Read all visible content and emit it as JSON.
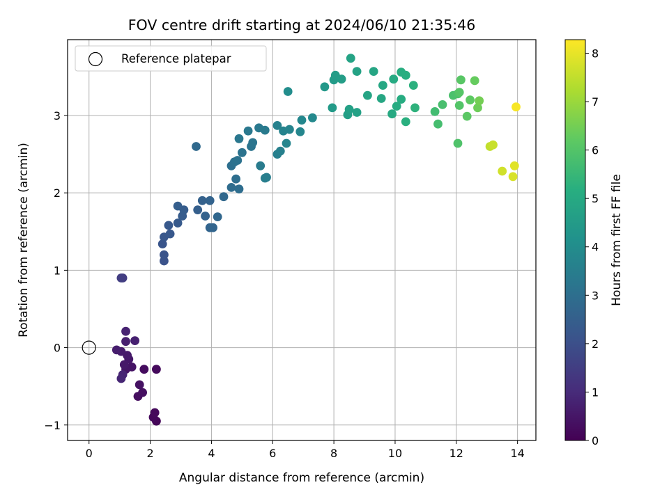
{
  "chart_data": {
    "type": "scatter",
    "title": "FOV centre drift starting at 2024/06/10 21:35:46",
    "xlabel": "Angular distance from reference (arcmin)",
    "ylabel": "Rotation from reference (arcmin)",
    "xlim": [
      -0.7,
      14.6
    ],
    "ylim": [
      -1.2,
      3.98
    ],
    "xticks": [
      0,
      2,
      4,
      6,
      8,
      10,
      12,
      14
    ],
    "yticks": [
      -1,
      0,
      1,
      2,
      3
    ],
    "grid": true,
    "legend": {
      "placement": "top-left",
      "entries": [
        "Reference platepar"
      ]
    },
    "reference_point": {
      "x": 0,
      "y": 0
    },
    "colorbar": {
      "label": "Hours from first FF file",
      "range": [
        0,
        8.28
      ],
      "ticks": [
        0,
        1,
        2,
        3,
        4,
        5,
        6,
        7,
        8
      ],
      "colormap": "viridis"
    },
    "points": [
      [
        2.2,
        -0.95,
        0.1
      ],
      [
        2.1,
        -0.9,
        0.15
      ],
      [
        2.15,
        -0.84,
        0.18
      ],
      [
        2.2,
        -0.28,
        0.22
      ],
      [
        1.8,
        -0.28,
        0.26
      ],
      [
        1.6,
        -0.63,
        0.3
      ],
      [
        1.75,
        -0.58,
        0.34
      ],
      [
        1.65,
        -0.48,
        0.38
      ],
      [
        1.4,
        -0.25,
        0.42
      ],
      [
        1.2,
        -0.28,
        0.46
      ],
      [
        1.3,
        -0.15,
        0.5
      ],
      [
        1.15,
        -0.22,
        0.54
      ],
      [
        1.25,
        -0.1,
        0.58
      ],
      [
        1.05,
        -0.05,
        0.62
      ],
      [
        0.9,
        -0.03,
        0.66
      ],
      [
        1.2,
        0.08,
        0.7
      ],
      [
        1.5,
        0.09,
        0.74
      ],
      [
        1.2,
        0.21,
        0.78
      ],
      [
        1.1,
        -0.35,
        0.82
      ],
      [
        1.05,
        -0.4,
        0.86
      ],
      [
        1.1,
        0.9,
        1.45
      ],
      [
        1.05,
        0.9,
        1.5
      ],
      [
        2.45,
        1.12,
        2.1
      ],
      [
        2.45,
        1.2,
        2.14
      ],
      [
        2.4,
        1.34,
        2.18
      ],
      [
        2.45,
        1.43,
        2.22
      ],
      [
        2.65,
        1.47,
        2.26
      ],
      [
        2.6,
        1.58,
        2.3
      ],
      [
        2.9,
        1.61,
        2.34
      ],
      [
        3.05,
        1.7,
        2.38
      ],
      [
        3.1,
        1.78,
        2.42
      ],
      [
        2.9,
        1.83,
        2.46
      ],
      [
        3.55,
        1.78,
        2.5
      ],
      [
        3.7,
        1.9,
        2.54
      ],
      [
        3.8,
        1.7,
        2.58
      ],
      [
        3.95,
        1.9,
        2.62
      ],
      [
        3.95,
        1.55,
        2.66
      ],
      [
        4.05,
        1.55,
        2.7
      ],
      [
        4.2,
        1.69,
        2.74
      ],
      [
        4.4,
        1.95,
        2.78
      ],
      [
        3.5,
        2.6,
        2.82
      ],
      [
        4.65,
        2.07,
        2.9
      ],
      [
        4.9,
        2.05,
        2.94
      ],
      [
        4.8,
        2.18,
        2.98
      ],
      [
        4.65,
        2.35,
        3.02
      ],
      [
        4.75,
        2.4,
        3.06
      ],
      [
        4.85,
        2.42,
        3.1
      ],
      [
        5.0,
        2.52,
        3.14
      ],
      [
        5.3,
        2.6,
        3.18
      ],
      [
        5.35,
        2.65,
        3.22
      ],
      [
        4.9,
        2.7,
        3.26
      ],
      [
        5.2,
        2.8,
        3.3
      ],
      [
        5.55,
        2.84,
        3.34
      ],
      [
        5.75,
        2.81,
        3.38
      ],
      [
        5.6,
        2.35,
        3.42
      ],
      [
        5.8,
        2.2,
        3.46
      ],
      [
        5.75,
        2.19,
        3.5
      ],
      [
        6.15,
        2.5,
        3.54
      ],
      [
        6.25,
        2.54,
        3.58
      ],
      [
        6.15,
        2.87,
        3.62
      ],
      [
        6.35,
        2.8,
        3.66
      ],
      [
        6.55,
        2.82,
        3.7
      ],
      [
        6.45,
        2.64,
        3.74
      ],
      [
        6.9,
        2.79,
        3.78
      ],
      [
        6.95,
        2.94,
        3.82
      ],
      [
        7.3,
        2.97,
        3.86
      ],
      [
        6.5,
        3.31,
        4.0
      ],
      [
        7.7,
        3.37,
        4.4
      ],
      [
        7.95,
        3.1,
        4.46
      ],
      [
        8.0,
        3.46,
        4.5
      ],
      [
        8.05,
        3.52,
        4.54
      ],
      [
        8.25,
        3.47,
        4.58
      ],
      [
        8.45,
        3.01,
        4.62
      ],
      [
        8.5,
        3.08,
        4.66
      ],
      [
        8.75,
        3.04,
        4.7
      ],
      [
        8.75,
        3.57,
        4.74
      ],
      [
        8.55,
        3.74,
        4.78
      ],
      [
        9.1,
        3.26,
        4.82
      ],
      [
        9.3,
        3.57,
        4.86
      ],
      [
        9.55,
        3.22,
        4.9
      ],
      [
        9.6,
        3.39,
        4.94
      ],
      [
        9.9,
        3.02,
        4.98
      ],
      [
        9.95,
        3.47,
        5.02
      ],
      [
        10.05,
        3.12,
        5.06
      ],
      [
        10.2,
        3.21,
        5.1
      ],
      [
        10.2,
        3.56,
        5.14
      ],
      [
        10.35,
        3.52,
        5.18
      ],
      [
        10.35,
        2.92,
        5.22
      ],
      [
        10.6,
        3.39,
        5.26
      ],
      [
        10.65,
        3.1,
        5.3
      ],
      [
        11.3,
        3.05,
        5.7
      ],
      [
        11.4,
        2.89,
        5.75
      ],
      [
        11.55,
        3.14,
        5.8
      ],
      [
        11.9,
        3.26,
        5.85
      ],
      [
        12.05,
        3.28,
        5.9
      ],
      [
        12.05,
        2.64,
        5.95
      ],
      [
        12.1,
        3.13,
        6.0
      ],
      [
        12.1,
        3.3,
        6.05
      ],
      [
        12.15,
        3.46,
        6.1
      ],
      [
        12.35,
        2.99,
        6.15
      ],
      [
        12.45,
        3.2,
        6.2
      ],
      [
        12.6,
        3.45,
        6.3
      ],
      [
        12.7,
        3.1,
        6.4
      ],
      [
        12.75,
        3.19,
        6.5
      ],
      [
        13.1,
        2.6,
        7.5
      ],
      [
        13.2,
        2.62,
        7.6
      ],
      [
        13.5,
        2.28,
        7.7
      ],
      [
        13.85,
        2.21,
        7.8
      ],
      [
        13.9,
        2.35,
        7.9
      ],
      [
        13.95,
        3.11,
        8.2
      ]
    ]
  }
}
